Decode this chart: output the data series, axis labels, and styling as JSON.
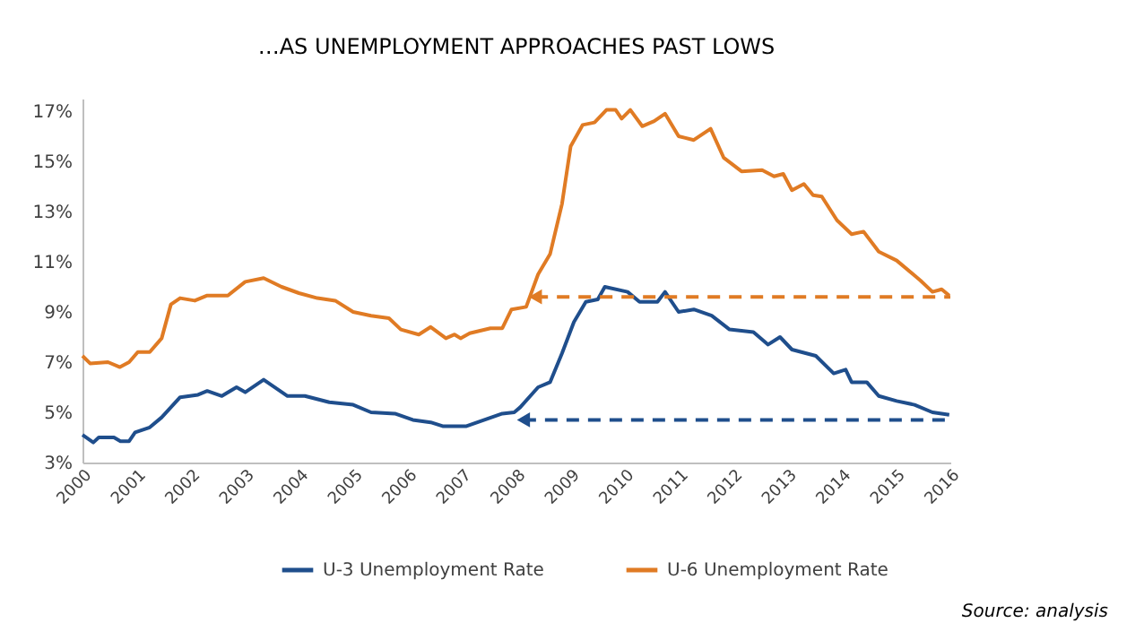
{
  "chart_data": {
    "type": "line",
    "title": "…AS UNEMPLOYMENT APPROACHES PAST LOWS",
    "xlim": [
      2000,
      2016
    ],
    "xticks": [
      2000,
      2001,
      2002,
      2003,
      2004,
      2005,
      2006,
      2007,
      2008,
      2009,
      2010,
      2011,
      2012,
      2013,
      2014,
      2015,
      2016
    ],
    "ylim": [
      3,
      17.5
    ],
    "yticks": [
      {
        "value": 3,
        "label": "3%"
      },
      {
        "value": 5,
        "label": "5%"
      },
      {
        "value": 7,
        "label": "7%"
      },
      {
        "value": 9,
        "label": "9%"
      },
      {
        "value": 11,
        "label": "11%"
      },
      {
        "value": 13,
        "label": "13%"
      },
      {
        "value": 15,
        "label": "15%"
      },
      {
        "value": 17,
        "label": "17%"
      }
    ],
    "legend": "bottom",
    "line_style": "solid",
    "series": [
      {
        "name": "U-3 Unemployment Rate",
        "color": "#1f4e8c",
        "x": [
          2000.0,
          2000.2,
          2000.3,
          2000.58,
          2000.7,
          2000.86,
          2000.97,
          2001.24,
          2001.46,
          2001.8,
          2002.13,
          2002.3,
          2002.57,
          2002.84,
          2003.0,
          2003.34,
          2003.78,
          2004.1,
          2004.55,
          2004.99,
          2005.32,
          2005.76,
          2006.09,
          2006.42,
          2006.64,
          2007.08,
          2007.41,
          2007.74,
          2007.96,
          2008.07,
          2008.4,
          2008.62,
          2008.84,
          2009.06,
          2009.28,
          2009.5,
          2009.63,
          2010.05,
          2010.27,
          2010.6,
          2010.74,
          2010.99,
          2011.27,
          2011.6,
          2011.93,
          2012.37,
          2012.64,
          2012.86,
          2013.08,
          2013.52,
          2013.85,
          2014.07,
          2014.18,
          2014.46,
          2014.68,
          2015.01,
          2015.34,
          2015.67,
          2015.98
        ],
        "values": [
          4.1,
          3.8,
          4.0,
          4.0,
          3.85,
          3.85,
          4.2,
          4.4,
          4.8,
          5.6,
          5.7,
          5.85,
          5.65,
          6.0,
          5.8,
          6.3,
          5.65,
          5.65,
          5.4,
          5.3,
          5.0,
          4.95,
          4.7,
          4.6,
          4.45,
          4.45,
          4.7,
          4.95,
          5.0,
          5.2,
          6.0,
          6.2,
          7.35,
          8.6,
          9.4,
          9.5,
          10.0,
          9.8,
          9.4,
          9.4,
          9.8,
          9.0,
          9.1,
          8.85,
          8.3,
          8.2,
          7.7,
          8.0,
          7.5,
          7.25,
          6.55,
          6.7,
          6.2,
          6.2,
          5.65,
          5.45,
          5.3,
          5.0,
          4.9
        ]
      },
      {
        "name": "U-6 Unemployment Rate",
        "color": "#e07b24",
        "x": [
          2000.0,
          2000.14,
          2000.47,
          2000.69,
          2000.86,
          2001.02,
          2001.24,
          2001.46,
          2001.63,
          2001.8,
          2002.07,
          2002.29,
          2002.68,
          2003.0,
          2003.34,
          2003.67,
          2003.99,
          2004.33,
          2004.66,
          2004.99,
          2005.32,
          2005.65,
          2005.87,
          2006.2,
          2006.42,
          2006.7,
          2006.86,
          2006.97,
          2007.14,
          2007.52,
          2007.74,
          2007.91,
          2008.18,
          2008.4,
          2008.62,
          2008.84,
          2009.0,
          2009.22,
          2009.44,
          2009.66,
          2009.83,
          2009.94,
          2010.1,
          2010.32,
          2010.54,
          2010.74,
          2010.99,
          2011.27,
          2011.58,
          2011.82,
          2012.15,
          2012.53,
          2012.75,
          2012.92,
          2013.08,
          2013.3,
          2013.47,
          2013.63,
          2013.91,
          2014.18,
          2014.4,
          2014.68,
          2015.01,
          2015.45,
          2015.67,
          2015.84,
          2015.98
        ],
        "values": [
          7.25,
          6.95,
          7.0,
          6.8,
          7.0,
          7.4,
          7.4,
          7.95,
          9.3,
          9.55,
          9.45,
          9.65,
          9.65,
          10.2,
          10.35,
          10.0,
          9.75,
          9.55,
          9.45,
          9.0,
          8.85,
          8.75,
          8.3,
          8.1,
          8.4,
          7.95,
          8.1,
          7.95,
          8.15,
          8.35,
          8.35,
          9.1,
          9.2,
          10.5,
          11.3,
          13.3,
          15.6,
          16.45,
          16.55,
          17.05,
          17.05,
          16.7,
          17.05,
          16.4,
          16.6,
          16.9,
          16.0,
          15.85,
          16.3,
          15.15,
          14.6,
          14.65,
          14.4,
          14.5,
          13.85,
          14.1,
          13.65,
          13.6,
          12.65,
          12.1,
          12.2,
          11.4,
          11.05,
          10.25,
          9.8,
          9.9,
          9.65
        ]
      },
      {
        "color": "#1f4e8c",
        "line_style": "dashed",
        "x": [
          2008.13,
          2016.0
        ],
        "values": [
          4.7,
          4.7
        ]
      },
      {
        "color": "#e07b24",
        "line_style": "dashed",
        "x": [
          2008.35,
          2016.0
        ],
        "values": [
          9.6,
          9.6
        ]
      }
    ],
    "annotations": [
      "Source: analysis"
    ]
  }
}
